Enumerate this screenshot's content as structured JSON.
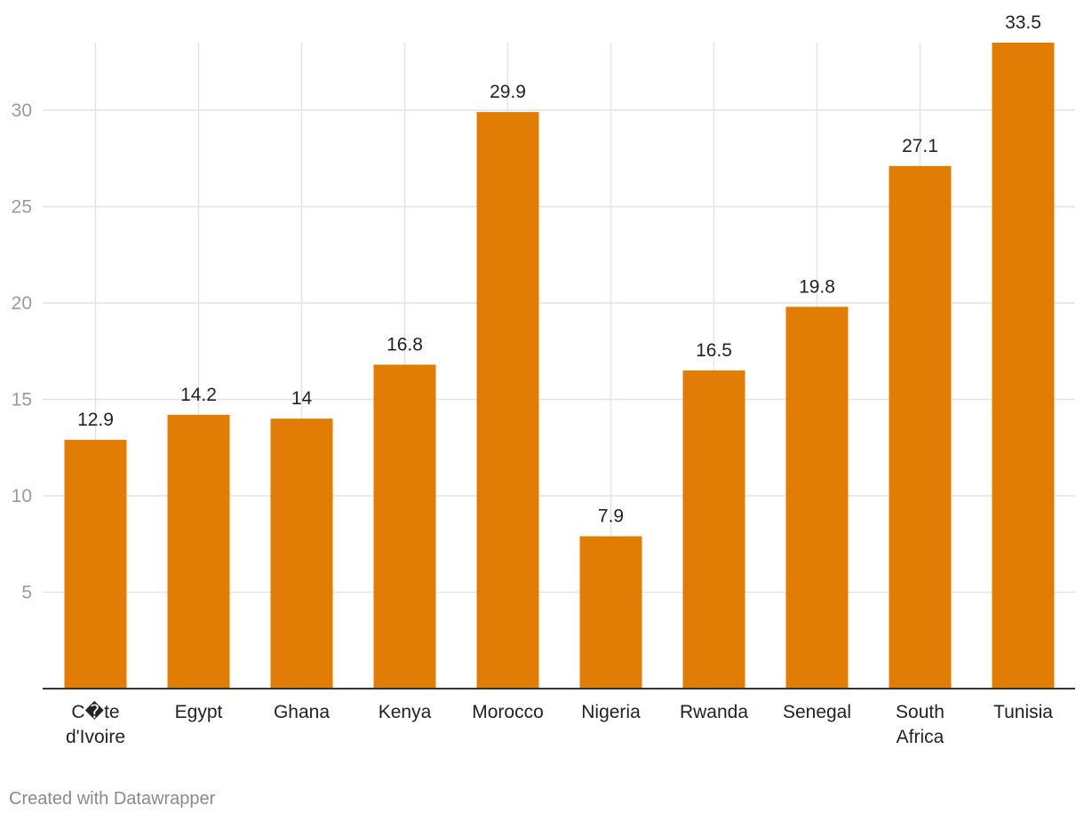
{
  "chart_data": {
    "type": "bar",
    "categories": [
      "C�te d'Ivoire",
      "Egypt",
      "Ghana",
      "Kenya",
      "Morocco",
      "Nigeria",
      "Rwanda",
      "Senegal",
      "South Africa",
      "Tunisia"
    ],
    "category_lines": [
      [
        "C�te",
        "d'Ivoire"
      ],
      [
        "Egypt"
      ],
      [
        "Ghana"
      ],
      [
        "Kenya"
      ],
      [
        "Morocco"
      ],
      [
        "Nigeria"
      ],
      [
        "Rwanda"
      ],
      [
        "Senegal"
      ],
      [
        "South",
        "Africa"
      ],
      [
        "Tunisia"
      ]
    ],
    "values": [
      12.9,
      14.2,
      14,
      16.8,
      29.9,
      7.9,
      16.5,
      19.8,
      27.1,
      33.5
    ],
    "value_labels": [
      "12.9",
      "14.2",
      "14",
      "16.8",
      "29.9",
      "7.9",
      "16.5",
      "19.8",
      "27.1",
      "33.5"
    ],
    "y_ticks": [
      5,
      10,
      15,
      20,
      25,
      30
    ],
    "y_tick_labels": [
      "5",
      "10",
      "15",
      "20",
      "25",
      "30"
    ],
    "ylim": [
      0,
      33.5
    ],
    "grid": true,
    "bar_color": "#e17c05",
    "grid_color": "#e4e4e4",
    "axis_color": "#333333",
    "label_color": "#222222",
    "tick_label_color": "#9a9a9a"
  },
  "footer": {
    "credit": "Created with Datawrapper"
  }
}
